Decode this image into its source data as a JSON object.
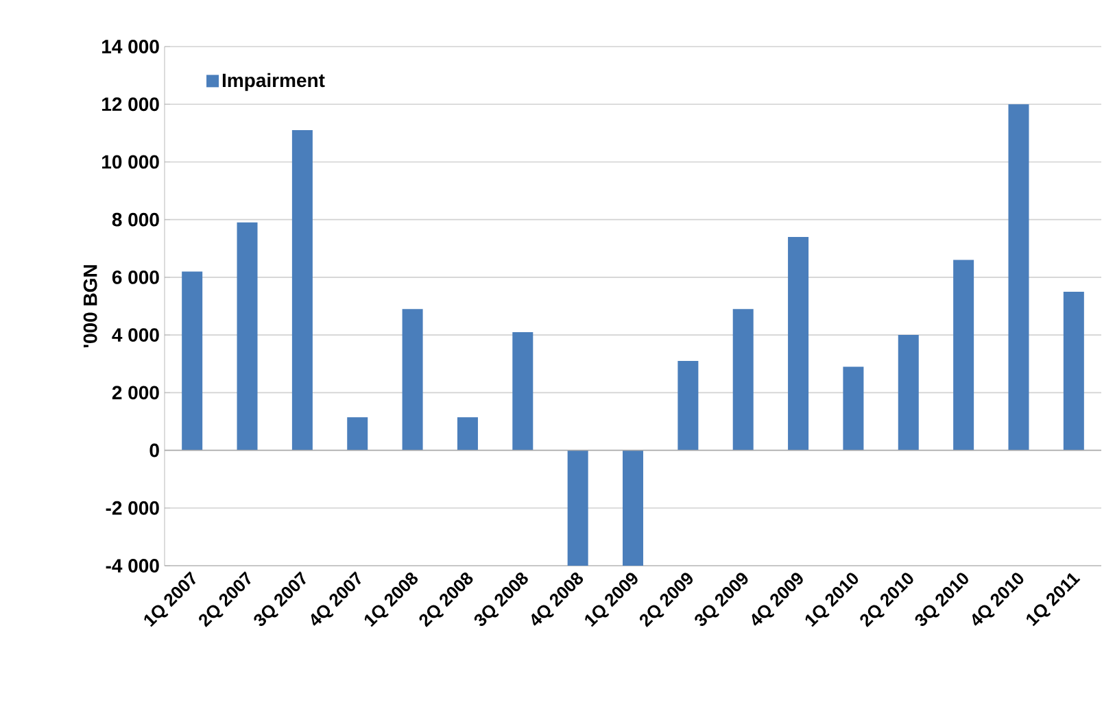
{
  "chart_data": {
    "type": "bar",
    "ylabel": "'000 BGN",
    "categories": [
      "1Q 2007",
      "2Q 2007",
      "3Q 2007",
      "4Q 2007",
      "1Q 2008",
      "2Q 2008",
      "3Q 2008",
      "4Q 2008",
      "1Q 2009",
      "2Q 2009",
      "3Q 2009",
      "4Q 2009",
      "1Q 2010",
      "2Q 2010",
      "3Q 2010",
      "4Q 2010",
      "1Q 2011"
    ],
    "series": [
      {
        "name": "Impairment",
        "color": "#4a7ebb",
        "values": [
          6200,
          7900,
          11100,
          1150,
          4900,
          1150,
          4100,
          -4000,
          -4000,
          3100,
          4900,
          7400,
          2900,
          4000,
          6600,
          12000,
          5500
        ]
      }
    ],
    "ylim": [
      -4000,
      14000
    ],
    "yticks": [
      {
        "value": -4000,
        "label": "-4 000"
      },
      {
        "value": -2000,
        "label": "-2 000"
      },
      {
        "value": 0,
        "label": "0"
      },
      {
        "value": 2000,
        "label": "2 000"
      },
      {
        "value": 4000,
        "label": "4 000"
      },
      {
        "value": 6000,
        "label": "6 000"
      },
      {
        "value": 8000,
        "label": "8 000"
      },
      {
        "value": 10000,
        "label": "10 000"
      },
      {
        "value": 12000,
        "label": "12 000"
      },
      {
        "value": 14000,
        "label": "14 000"
      }
    ],
    "grid": "y",
    "legend": "top left"
  }
}
